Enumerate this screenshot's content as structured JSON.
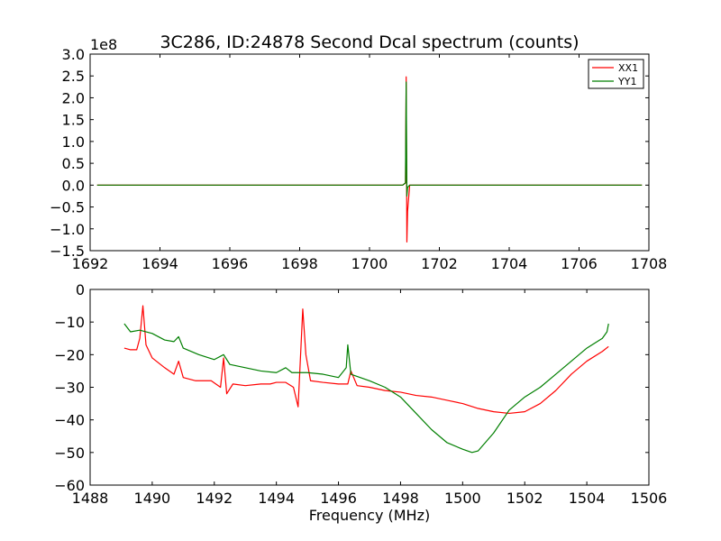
{
  "chart_data": [
    {
      "type": "line",
      "title": "3C286, ID:24878 Second Dcal spectrum (counts)",
      "xlabel": "",
      "ylabel": "",
      "y_scale_label": "1e8",
      "xlim": [
        1692,
        1708
      ],
      "ylim": [
        -1.5,
        3.0
      ],
      "xticks": [
        "1692",
        "1694",
        "1696",
        "1698",
        "1700",
        "1702",
        "1704",
        "1706",
        "1708"
      ],
      "yticks": [
        "−1.5",
        "−1.0",
        "−0.5",
        "0.0",
        "0.5",
        "1.0",
        "1.5",
        "2.0",
        "2.5",
        "3.0"
      ],
      "legend_position": "top-right",
      "grid": false,
      "series": [
        {
          "name": "XX1",
          "color": "#ff0000",
          "x": [
            1692.2,
            1700.95,
            1701.03,
            1701.05,
            1701.07,
            1701.09,
            1701.15,
            1707.8
          ],
          "y": [
            0.0,
            0.0,
            0.05,
            2.48,
            -1.3,
            -0.6,
            0.0,
            0.0
          ]
        },
        {
          "name": "YY1",
          "color": "#007f00",
          "x": [
            1692.2,
            1700.95,
            1701.03,
            1701.05,
            1701.07,
            1701.09,
            1701.15,
            1707.8
          ],
          "y": [
            0.0,
            0.0,
            0.05,
            2.36,
            -0.25,
            -0.05,
            0.0,
            0.0
          ]
        }
      ]
    },
    {
      "type": "line",
      "title": "",
      "xlabel": "Frequency (MHz)",
      "ylabel": "",
      "xlim": [
        1488,
        1506
      ],
      "ylim": [
        -60,
        0
      ],
      "xticks": [
        "1488",
        "1490",
        "1492",
        "1494",
        "1496",
        "1498",
        "1500",
        "1502",
        "1504",
        "1506"
      ],
      "yticks": [
        "−60",
        "−50",
        "−40",
        "−30",
        "−20",
        "−10",
        "0"
      ],
      "grid": false,
      "series": [
        {
          "color": "#ff0000",
          "x": [
            1489.1,
            1489.3,
            1489.5,
            1489.6,
            1489.7,
            1489.8,
            1490.0,
            1490.4,
            1490.7,
            1490.85,
            1491.0,
            1491.4,
            1491.9,
            1492.2,
            1492.3,
            1492.4,
            1492.6,
            1493.0,
            1493.5,
            1493.8,
            1494.0,
            1494.3,
            1494.55,
            1494.7,
            1494.85,
            1494.95,
            1495.1,
            1495.5,
            1496.0,
            1496.3,
            1496.4,
            1496.6,
            1497.0,
            1497.5,
            1498.0,
            1498.5,
            1499.0,
            1499.5,
            1500.0,
            1500.5,
            1501.0,
            1501.5,
            1502.0,
            1502.5,
            1503.0,
            1503.5,
            1504.0,
            1504.5,
            1504.7
          ],
          "y": [
            -18,
            -18.5,
            -18.5,
            -15,
            -5,
            -17,
            -21,
            -24,
            -26,
            -22,
            -27,
            -28,
            -28,
            -30,
            -21,
            -32,
            -29,
            -29.5,
            -29,
            -29,
            -28.5,
            -28.5,
            -30,
            -36,
            -6,
            -20,
            -28,
            -28.5,
            -29,
            -29,
            -25,
            -29.5,
            -30,
            -31,
            -31.5,
            -32.5,
            -33,
            -34,
            -35,
            -36.5,
            -37.5,
            -38,
            -37.5,
            -35,
            -31,
            -26,
            -22,
            -19,
            -17.5
          ]
        },
        {
          "color": "#007f00",
          "x": [
            1489.1,
            1489.3,
            1489.6,
            1490.0,
            1490.4,
            1490.7,
            1490.85,
            1491.0,
            1491.5,
            1492.0,
            1492.3,
            1492.5,
            1493.0,
            1493.5,
            1494.0,
            1494.3,
            1494.5,
            1495.0,
            1495.5,
            1496.0,
            1496.25,
            1496.3,
            1496.4,
            1496.7,
            1497.0,
            1497.5,
            1498.0,
            1498.5,
            1499.0,
            1499.5,
            1500.0,
            1500.3,
            1500.5,
            1501.0,
            1501.5,
            1502.0,
            1502.5,
            1503.0,
            1503.5,
            1504.0,
            1504.5,
            1504.65,
            1504.7
          ],
          "y": [
            -10.5,
            -13,
            -12.5,
            -13.5,
            -15.5,
            -16,
            -14.5,
            -18,
            -20,
            -21.5,
            -20,
            -23,
            -24,
            -25,
            -25.5,
            -24,
            -25.5,
            -25.5,
            -26,
            -27,
            -24,
            -17,
            -26,
            -27,
            -28,
            -30,
            -33,
            -38,
            -43,
            -47,
            -49,
            -50,
            -49.5,
            -44,
            -37,
            -33,
            -30,
            -26,
            -22,
            -18,
            -15,
            -13,
            -10.5
          ]
        }
      ]
    }
  ],
  "legend": {
    "items": [
      {
        "label": "XX1",
        "color": "#ff0000"
      },
      {
        "label": "YY1",
        "color": "#007f00"
      }
    ]
  }
}
